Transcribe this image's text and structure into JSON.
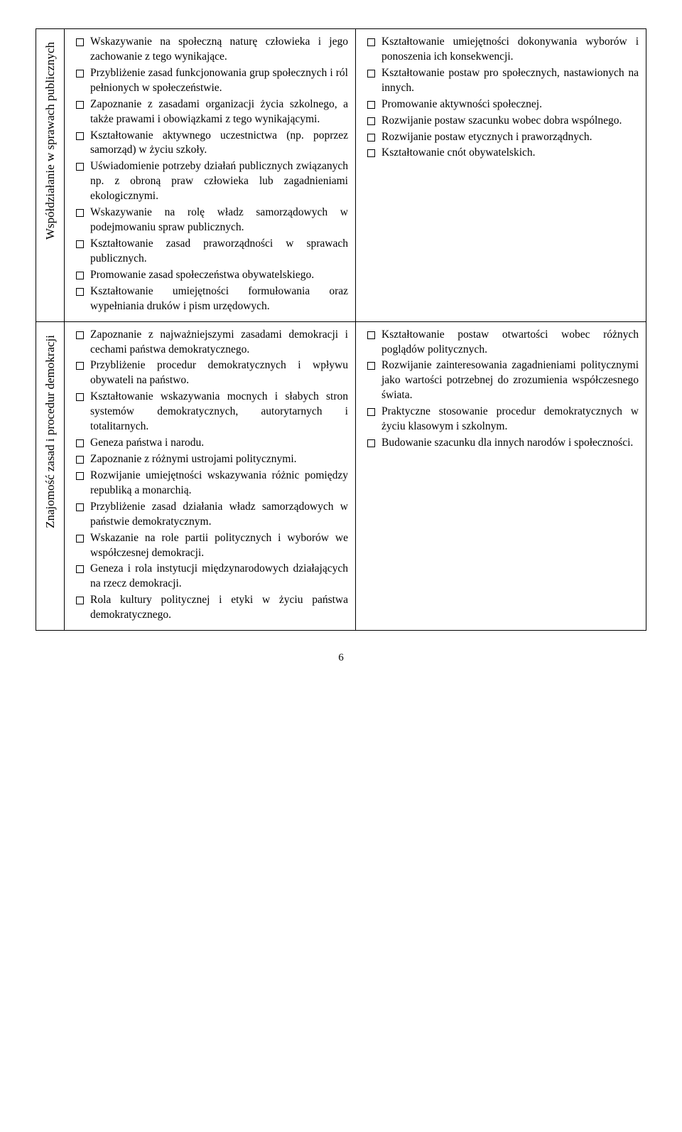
{
  "rows": [
    {
      "header": "Współdziałanie w sprawach publicznych",
      "left": [
        "Wskazywanie na społeczną naturę człowieka i jego zachowanie z tego wynikające.",
        "Przybliżenie zasad funkcjonowania grup społecznych i ról pełnionych w społeczeństwie.",
        "Zapoznanie z zasadami organizacji życia szkolnego, a także prawami i obowiązkami z tego wynikającymi.",
        "Kształtowanie aktywnego uczestnictwa (np. poprzez samorząd) w życiu szkoły.",
        "Uświadomienie potrzeby działań publicznych związanych np. z obroną praw człowieka lub zagadnieniami ekologicznymi.",
        "Wskazywanie na rolę władz samorządowych w podejmowaniu spraw publicznych.",
        "Kształtowanie zasad praworządności w sprawach publicznych.",
        "Promowanie zasad społeczeństwa obywatelskiego.",
        "Kształtowanie umiejętności formułowania oraz wypełniania druków i pism urzędowych."
      ],
      "right": [
        "Kształtowanie umiejętności dokonywania wyborów i ponoszenia ich konsekwencji.",
        "Kształtowanie postaw pro społecznych, nastawionych na innych.",
        "Promowanie aktywności społecznej.",
        "Rozwijanie postaw szacunku wobec dobra wspólnego.",
        "Rozwijanie postaw etycznych i praworządnych.",
        "Kształtowanie cnót obywatelskich."
      ]
    },
    {
      "header": "Znajomość zasad i procedur demokracji",
      "left": [
        "Zapoznanie z najważniejszymi zasadami demokracji i cechami państwa demokratycznego.",
        "Przybliżenie procedur demokratycznych i wpływu obywateli na państwo.",
        "Kształtowanie wskazywania mocnych i słabych stron systemów demokratycznych, autorytarnych i totalitarnych.",
        "Geneza państwa i narodu.",
        "Zapoznanie z różnymi ustrojami politycznymi.",
        "Rozwijanie umiejętności wskazywania różnic pomiędzy republiką a monarchią.",
        "Przybliżenie zasad działania władz samorządowych w państwie demokratycznym.",
        "Wskazanie na role partii politycznych i wyborów we współczesnej demokracji.",
        "Geneza i rola instytucji międzynarodowych działających na rzecz demokracji.",
        "Rola kultury politycznej i etyki w życiu państwa demokratycznego."
      ],
      "right": [
        "Kształtowanie postaw otwartości wobec różnych poglądów politycznych.",
        "Rozwijanie zainteresowania zagadnieniami politycznymi jako wartości potrzebnej do zrozumienia współczesnego świata.",
        "Praktyczne stosowanie procedur demokratycznych w życiu klasowym i szkolnym.",
        "Budowanie szacunku dla innych narodów i społeczności."
      ]
    }
  ],
  "page_number": "6"
}
